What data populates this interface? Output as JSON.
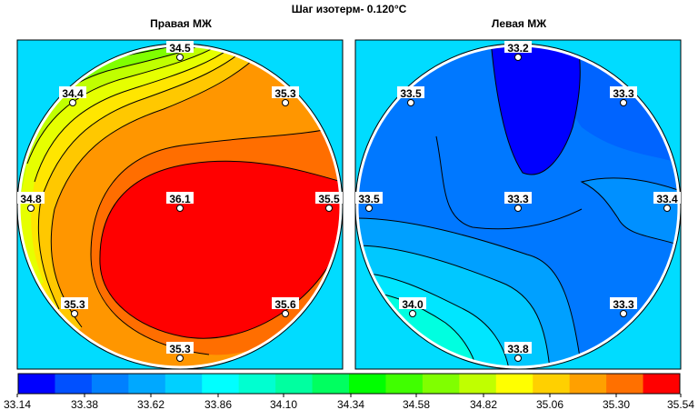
{
  "chart_data": [
    {
      "type": "heatmap",
      "title": "Шаг изотерм- 0.120°C",
      "panels": [
        {
          "name": "Правая МЖ",
          "points": [
            {
              "id": "top",
              "value": "34.5"
            },
            {
              "id": "upper-left",
              "value": "34.4"
            },
            {
              "id": "upper-right",
              "value": "35.3"
            },
            {
              "id": "left",
              "value": "34.8"
            },
            {
              "id": "center",
              "value": "36.1"
            },
            {
              "id": "right",
              "value": "35.5"
            },
            {
              "id": "lower-left",
              "value": "35.3"
            },
            {
              "id": "lower-right",
              "value": "35.6"
            },
            {
              "id": "bottom",
              "value": "35.3"
            }
          ]
        },
        {
          "name": "Левая МЖ",
          "points": [
            {
              "id": "top",
              "value": "33.2"
            },
            {
              "id": "upper-left",
              "value": "33.5"
            },
            {
              "id": "upper-right",
              "value": "33.3"
            },
            {
              "id": "left",
              "value": "33.5"
            },
            {
              "id": "center",
              "value": "33.3"
            },
            {
              "id": "right",
              "value": "33.4"
            },
            {
              "id": "lower-left",
              "value": "34.0"
            },
            {
              "id": "lower-right",
              "value": "33.3"
            },
            {
              "id": "bottom",
              "value": "33.8"
            }
          ]
        }
      ],
      "colorbar": {
        "ticks": [
          "33.14",
          "33.38",
          "33.62",
          "33.86",
          "34.10",
          "34.34",
          "34.58",
          "34.82",
          "35.06",
          "35.30",
          "35.54"
        ],
        "colors": [
          "#0000ff",
          "#0050ff",
          "#0080ff",
          "#00a8ff",
          "#00d0ff",
          "#00ffff",
          "#00ffd0",
          "#00ffa0",
          "#00ff60",
          "#00ff00",
          "#40ff00",
          "#80ff00",
          "#c0ff00",
          "#ffff00",
          "#ffd000",
          "#ffa000",
          "#ff7000",
          "#ff0000"
        ]
      },
      "background_color": "#00dcff",
      "isotherm_step": "0.120°C"
    }
  ]
}
